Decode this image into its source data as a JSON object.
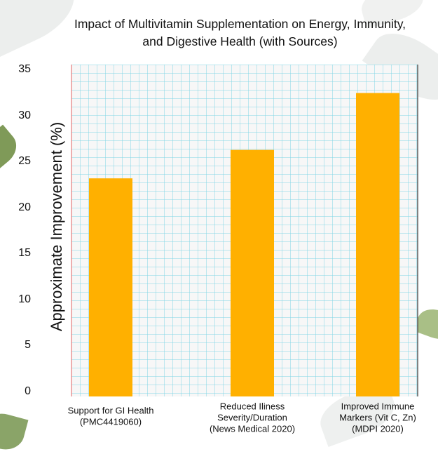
{
  "chart_data": {
    "type": "bar",
    "title": [
      "Impact of Multivitamin Supplementation on Energy, Immunity,",
      "and Digestive Health (with Sources)"
    ],
    "xlabel": "",
    "ylabel": "Approximate Improvement (%)",
    "categories": [
      [
        "Support for GI Health",
        "(PMC4419060)"
      ],
      [
        "Reduced Iliness",
        "Severity/Duration",
        "(News Medical 2020)"
      ],
      [
        "Improved Immune",
        "Markers (Vit C, Zn)",
        "(MDPI 2020)"
      ]
    ],
    "values": [
      23,
      26,
      32
    ],
    "ylim": [
      0,
      35
    ],
    "yticks": [
      0,
      5,
      10,
      15,
      20,
      25,
      30,
      35
    ],
    "grid": true,
    "colors": {
      "bar": "#FFB000",
      "grid": "#7fd6e6",
      "plot_background": "#f7f7f7"
    }
  }
}
